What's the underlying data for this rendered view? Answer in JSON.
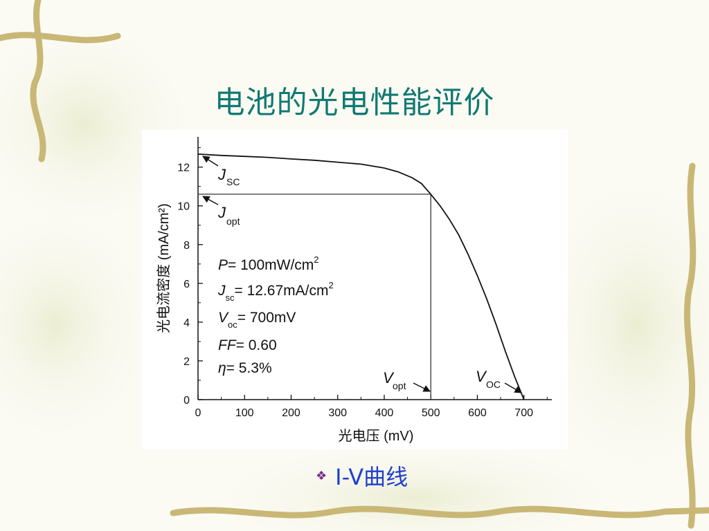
{
  "slide": {
    "title": "电池的光电性能评价",
    "bullet_icon": "diamond-bullet-icon",
    "bullet_text": "I-V曲线"
  },
  "chart_data": {
    "type": "line",
    "xlabel": "光电压 (mV)",
    "ylabel": "光电流密度 (mA/cm²)",
    "xlim": [
      0,
      760
    ],
    "ylim": [
      0,
      13.2
    ],
    "x_ticks": [
      0,
      100,
      200,
      300,
      400,
      500,
      600,
      700
    ],
    "y_ticks": [
      0,
      2,
      4,
      6,
      8,
      10,
      12
    ],
    "series": [
      {
        "points": [
          [
            0,
            12.67
          ],
          [
            50,
            12.6
          ],
          [
            100,
            12.55
          ],
          [
            150,
            12.5
          ],
          [
            200,
            12.42
          ],
          [
            250,
            12.35
          ],
          [
            300,
            12.25
          ],
          [
            350,
            12.15
          ],
          [
            400,
            11.95
          ],
          [
            430,
            11.75
          ],
          [
            460,
            11.45
          ],
          [
            480,
            11.15
          ],
          [
            500,
            10.6
          ],
          [
            520,
            10.0
          ],
          [
            540,
            9.3
          ],
          [
            560,
            8.5
          ],
          [
            580,
            7.5
          ],
          [
            600,
            6.4
          ],
          [
            620,
            5.2
          ],
          [
            640,
            3.9
          ],
          [
            660,
            2.5
          ],
          [
            680,
            1.2
          ],
          [
            700,
            0.0
          ]
        ]
      }
    ],
    "reference_lines": {
      "j_opt": 10.6,
      "v_opt": 500
    },
    "annotations": {
      "jsc_main": "J",
      "jsc_sub": "SC",
      "jopt_main": "J",
      "jopt_sub": "opt",
      "vopt_main": "V",
      "vopt_sub": "opt",
      "voc_main": "V",
      "voc_sub": "OC"
    },
    "params": {
      "p_sym": "P",
      "p_val": "= 100mW/cm",
      "p_sup": "2",
      "jsc_sym": "J",
      "jsc_sub": "sc",
      "jsc_val": "= 12.67mA/cm",
      "jsc_sup": "2",
      "voc_sym": "V",
      "voc_sub": "oc",
      "voc_val": "= 700mV",
      "ff_sym": "FF",
      "ff_val": "= 0.60",
      "eta_sym": "η",
      "eta_val": "= 5.3%"
    }
  }
}
